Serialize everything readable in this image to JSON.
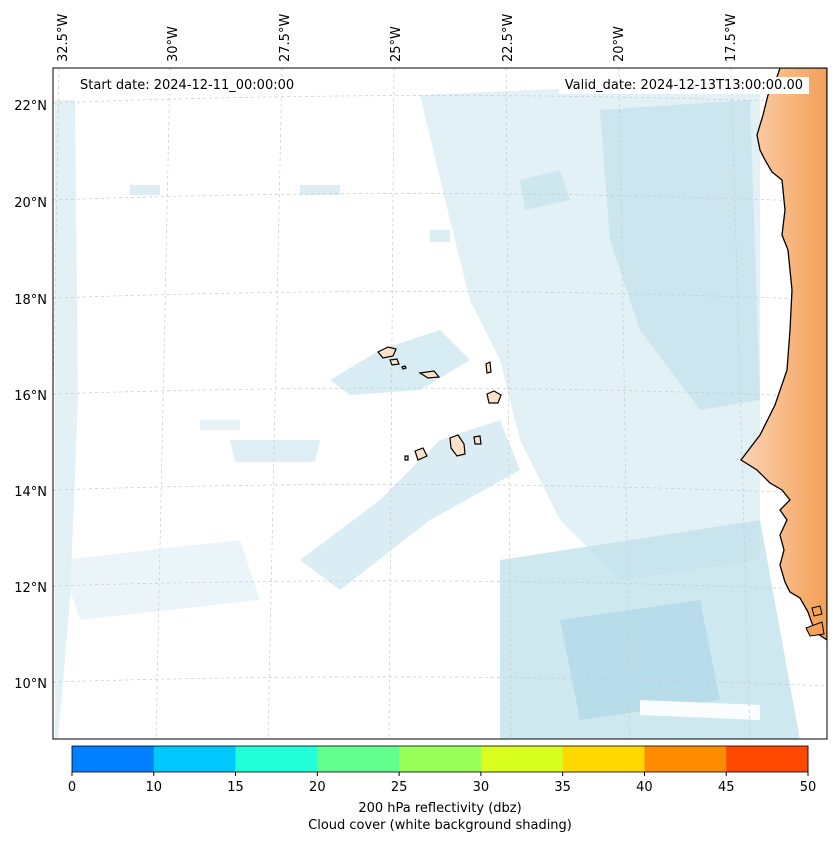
{
  "header": {
    "start_date": "Start date: 2024-12-11_00:00:00",
    "valid_date": "Valid_date: 2024-12-13T13:00:00.00"
  },
  "axes": {
    "lon_labels": [
      "32.5°W",
      "30°W",
      "27.5°W",
      "25°W",
      "22.5°W",
      "20°W",
      "17.5°W"
    ],
    "lat_labels": [
      "22°N",
      "20°N",
      "18°N",
      "16°N",
      "14°N",
      "12°N",
      "10°N"
    ]
  },
  "colorbar": {
    "ticks": [
      "0",
      "10",
      "15",
      "20",
      "25",
      "30",
      "35",
      "40",
      "45",
      "50"
    ],
    "colors": [
      "#0080ff",
      "#00c8ff",
      "#20ffd8",
      "#60ff90",
      "#98ff58",
      "#d8ff20",
      "#ffd800",
      "#ff8c00",
      "#ff4800"
    ],
    "title": "200 hPa reflectivity (dbz)",
    "subtitle": "Cloud cover (white background shading)"
  },
  "colors": {
    "land": "#f4a460",
    "island": "#fde0c8",
    "cloud": "#a8d8e8"
  }
}
